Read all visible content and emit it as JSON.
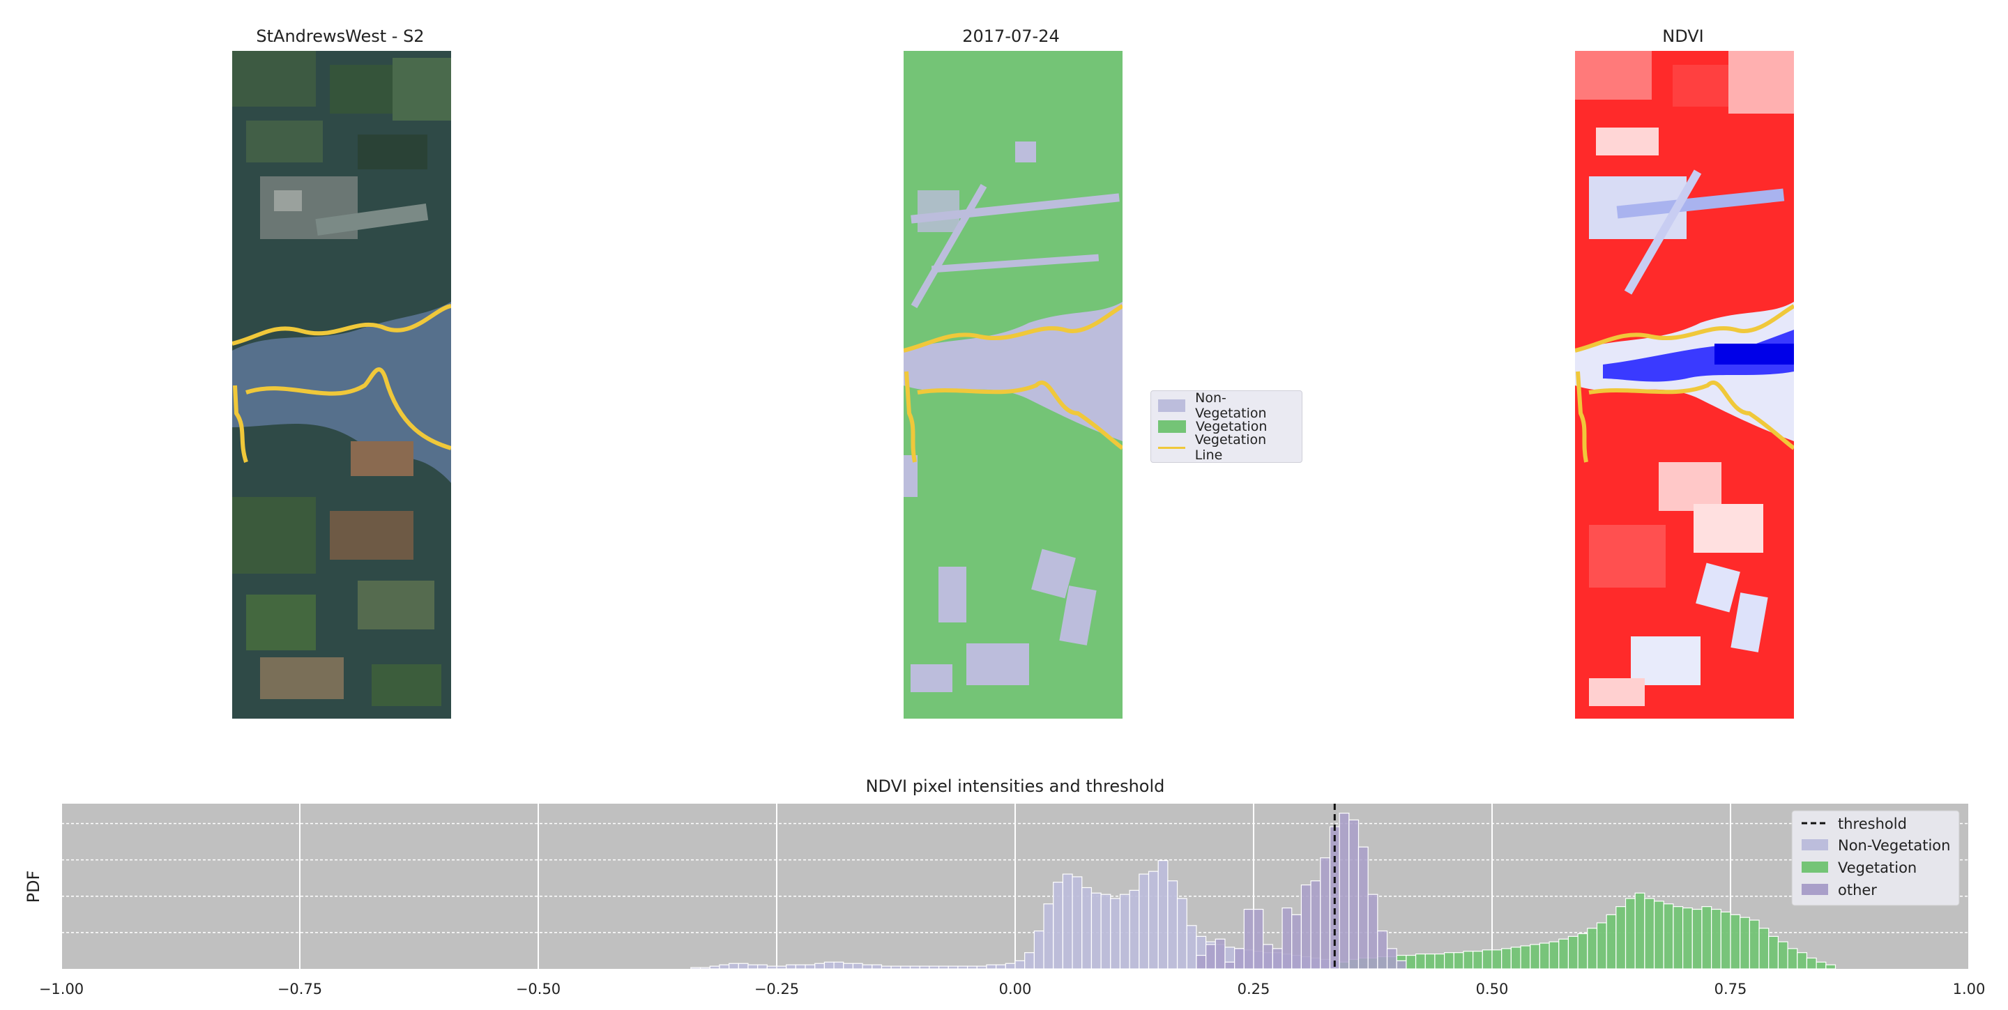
{
  "panels": {
    "rgb_title": "StAndrewsWest - S2",
    "class_title": "2017-07-24",
    "ndvi_title": "NDVI"
  },
  "class_legend": {
    "items": [
      "Non-Vegetation",
      "Vegetation",
      "Vegetation Line"
    ]
  },
  "colors": {
    "non_vegetation": "#bcbddc",
    "vegetation": "#74c476",
    "vegetation_line": "#f0c83a",
    "other": "#a99fc9",
    "threshold": "#111111",
    "hist_bg": "#c0c0c0"
  },
  "chart_data": {
    "type": "bar",
    "title": "NDVI pixel intensities and threshold",
    "xlabel": "",
    "ylabel": "PDF",
    "xlim": [
      -1.0,
      1.0
    ],
    "xticks": [
      "−1.00",
      "−0.75",
      "−0.50",
      "−0.25",
      "0.00",
      "0.25",
      "0.50",
      "0.75",
      "1.00"
    ],
    "xtick_values": [
      -1.0,
      -0.75,
      -0.5,
      -0.25,
      0.0,
      0.25,
      0.5,
      0.75,
      1.0
    ],
    "threshold": 0.335,
    "legend": [
      "threshold",
      "Non-Vegetation",
      "Vegetation",
      "other"
    ],
    "legend_position": "top-right",
    "grid": true,
    "bin_width": 0.01,
    "series": [
      {
        "name": "Non-Vegetation",
        "x": [
          -0.34,
          -0.33,
          -0.32,
          -0.31,
          -0.3,
          -0.29,
          -0.28,
          -0.27,
          -0.26,
          -0.25,
          -0.24,
          -0.23,
          -0.22,
          -0.21,
          -0.2,
          -0.19,
          -0.18,
          -0.17,
          -0.16,
          -0.15,
          -0.14,
          -0.13,
          -0.12,
          -0.11,
          -0.1,
          -0.09,
          -0.08,
          -0.07,
          -0.06,
          -0.05,
          -0.04,
          -0.03,
          -0.02,
          -0.01,
          0.0,
          0.01,
          0.02,
          0.03,
          0.04,
          0.05,
          0.06,
          0.07,
          0.08,
          0.09,
          0.1,
          0.11,
          0.12,
          0.13,
          0.14,
          0.15,
          0.16,
          0.17,
          0.18,
          0.19,
          0.2,
          0.21,
          0.22,
          0.23,
          0.24,
          0.25,
          0.26,
          0.27,
          0.28,
          0.29,
          0.3,
          0.31,
          0.32,
          0.33,
          0.34,
          0.35,
          0.36,
          0.37,
          0.38,
          0.39,
          0.4
        ],
        "values": [
          0.01,
          0.01,
          0.02,
          0.03,
          0.04,
          0.04,
          0.03,
          0.03,
          0.02,
          0.02,
          0.03,
          0.03,
          0.03,
          0.04,
          0.05,
          0.05,
          0.04,
          0.04,
          0.03,
          0.03,
          0.02,
          0.02,
          0.02,
          0.02,
          0.02,
          0.02,
          0.02,
          0.02,
          0.02,
          0.02,
          0.02,
          0.03,
          0.03,
          0.04,
          0.06,
          0.12,
          0.28,
          0.48,
          0.64,
          0.7,
          0.68,
          0.6,
          0.56,
          0.55,
          0.52,
          0.55,
          0.58,
          0.7,
          0.72,
          0.8,
          0.65,
          0.52,
          0.32,
          0.24,
          0.2,
          0.18,
          0.16,
          0.15,
          0.14,
          0.13,
          0.12,
          0.12,
          0.11,
          0.1,
          0.09,
          0.08,
          0.07,
          0.06,
          0.05,
          0.04,
          0.04,
          0.03,
          0.03,
          0.02,
          0.02
        ]
      },
      {
        "name": "Vegetation",
        "x": [
          0.34,
          0.35,
          0.36,
          0.37,
          0.38,
          0.39,
          0.4,
          0.41,
          0.42,
          0.43,
          0.44,
          0.45,
          0.46,
          0.47,
          0.48,
          0.49,
          0.5,
          0.51,
          0.52,
          0.53,
          0.54,
          0.55,
          0.56,
          0.57,
          0.58,
          0.59,
          0.6,
          0.61,
          0.62,
          0.63,
          0.64,
          0.65,
          0.66,
          0.67,
          0.68,
          0.69,
          0.7,
          0.71,
          0.72,
          0.73,
          0.74,
          0.75,
          0.76,
          0.77,
          0.78,
          0.79,
          0.8,
          0.81,
          0.82,
          0.83,
          0.84,
          0.85
        ],
        "values": [
          0.05,
          0.07,
          0.08,
          0.08,
          0.09,
          0.09,
          0.1,
          0.1,
          0.11,
          0.11,
          0.11,
          0.12,
          0.12,
          0.13,
          0.13,
          0.14,
          0.14,
          0.15,
          0.16,
          0.17,
          0.18,
          0.19,
          0.2,
          0.22,
          0.24,
          0.26,
          0.3,
          0.34,
          0.4,
          0.46,
          0.52,
          0.56,
          0.52,
          0.5,
          0.48,
          0.46,
          0.45,
          0.44,
          0.46,
          0.44,
          0.42,
          0.4,
          0.38,
          0.36,
          0.3,
          0.24,
          0.2,
          0.15,
          0.12,
          0.08,
          0.05,
          0.03
        ]
      },
      {
        "name": "other",
        "x": [
          0.19,
          0.2,
          0.21,
          0.22,
          0.23,
          0.24,
          0.25,
          0.26,
          0.27,
          0.28,
          0.29,
          0.3,
          0.31,
          0.32,
          0.33,
          0.34,
          0.35,
          0.36,
          0.37,
          0.38,
          0.39,
          0.4
        ],
        "values": [
          0.1,
          0.18,
          0.22,
          0.05,
          0.15,
          0.44,
          0.44,
          0.18,
          0.15,
          0.45,
          0.4,
          0.62,
          0.65,
          0.82,
          1.05,
          1.15,
          1.1,
          0.9,
          0.55,
          0.28,
          0.15,
          0.06
        ]
      }
    ]
  }
}
